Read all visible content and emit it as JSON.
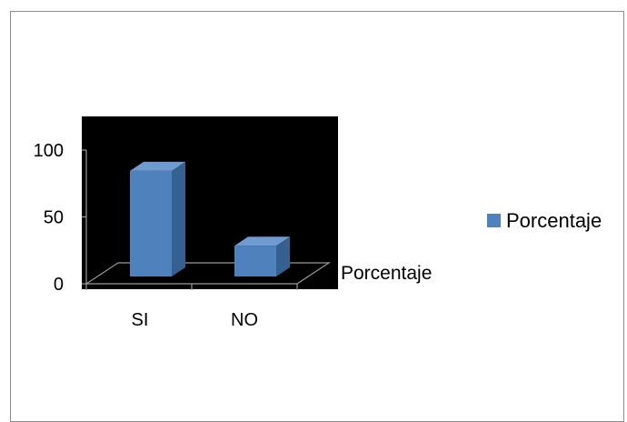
{
  "chart_data": {
    "type": "bar",
    "style": "3d-column",
    "categories": [
      "SI",
      "NO"
    ],
    "series": [
      {
        "name": "Porcentaje",
        "values": [
          79,
          23
        ],
        "color": "#4f81bd"
      }
    ],
    "ylim": [
      0,
      100
    ],
    "yticks": [
      0,
      50,
      100
    ],
    "depth_axis_label": "Porcentaje",
    "legend": {
      "position": "right",
      "entries": [
        "Porcentaje"
      ]
    },
    "plot_background": "#000000",
    "grid": false
  }
}
